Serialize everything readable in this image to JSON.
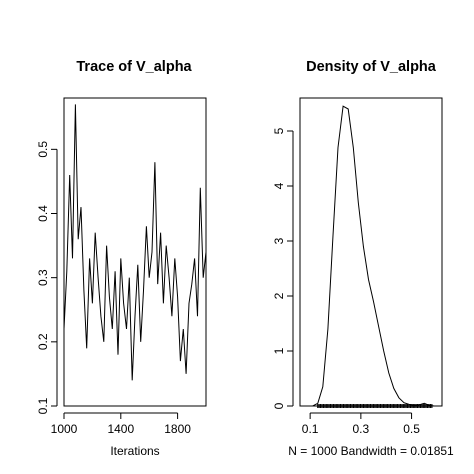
{
  "chart_data": [
    {
      "type": "line",
      "title": "Trace of V_alpha",
      "xlabel": "Iterations",
      "ylabel": "",
      "xlim": [
        1000,
        2000
      ],
      "ylim": [
        0.1,
        0.58
      ],
      "x_ticks": [
        1000,
        1400,
        1800
      ],
      "x_tick_labels": [
        "1000",
        "1400",
        "1800"
      ],
      "y_ticks": [
        0.1,
        0.2,
        0.3,
        0.4,
        0.5
      ],
      "y_tick_labels": [
        "0.1",
        "0.2",
        "0.3",
        "0.4",
        "0.5"
      ],
      "series": [
        {
          "x": [
            1000,
            1020,
            1040,
            1060,
            1080,
            1100,
            1120,
            1140,
            1160,
            1180,
            1200,
            1220,
            1240,
            1260,
            1280,
            1300,
            1320,
            1340,
            1360,
            1380,
            1400,
            1420,
            1440,
            1460,
            1480,
            1500,
            1520,
            1540,
            1560,
            1580,
            1600,
            1620,
            1640,
            1660,
            1680,
            1700,
            1720,
            1740,
            1760,
            1780,
            1800,
            1820,
            1840,
            1860,
            1880,
            1900,
            1920,
            1940,
            1960,
            1980,
            2000
          ],
          "values": [
            0.22,
            0.31,
            0.46,
            0.33,
            0.57,
            0.36,
            0.41,
            0.28,
            0.19,
            0.33,
            0.26,
            0.37,
            0.3,
            0.24,
            0.2,
            0.35,
            0.27,
            0.22,
            0.31,
            0.18,
            0.33,
            0.26,
            0.22,
            0.3,
            0.14,
            0.24,
            0.32,
            0.2,
            0.28,
            0.38,
            0.3,
            0.34,
            0.48,
            0.29,
            0.37,
            0.26,
            0.35,
            0.3,
            0.24,
            0.33,
            0.27,
            0.17,
            0.22,
            0.15,
            0.26,
            0.29,
            0.33,
            0.24,
            0.44,
            0.3,
            0.34
          ]
        }
      ]
    },
    {
      "type": "line",
      "title": "Density of V_alpha",
      "xlabel": "N = 1000   Bandwidth = 0.01851",
      "ylabel": "",
      "xlim": [
        0.06,
        0.62
      ],
      "ylim": [
        0,
        5.6
      ],
      "x_ticks": [
        0.1,
        0.3,
        0.5
      ],
      "x_tick_labels": [
        "0.1",
        "0.3",
        "0.5"
      ],
      "y_ticks": [
        0,
        1,
        2,
        3,
        4,
        5
      ],
      "y_tick_labels": [
        "0",
        "1",
        "2",
        "3",
        "4",
        "5"
      ],
      "series": [
        {
          "x": [
            0.11,
            0.13,
            0.15,
            0.17,
            0.19,
            0.21,
            0.23,
            0.25,
            0.27,
            0.29,
            0.31,
            0.33,
            0.35,
            0.37,
            0.39,
            0.41,
            0.43,
            0.45,
            0.47,
            0.49,
            0.51,
            0.53,
            0.55,
            0.57,
            0.59
          ],
          "values": [
            0.0,
            0.05,
            0.35,
            1.4,
            3.1,
            4.7,
            5.45,
            5.4,
            4.7,
            3.7,
            2.9,
            2.3,
            1.9,
            1.45,
            1.0,
            0.6,
            0.32,
            0.15,
            0.06,
            0.03,
            0.01,
            0.02,
            0.05,
            0.01,
            0.0
          ]
        }
      ],
      "rug": {
        "from": 0.13,
        "to": 0.58
      }
    }
  ]
}
